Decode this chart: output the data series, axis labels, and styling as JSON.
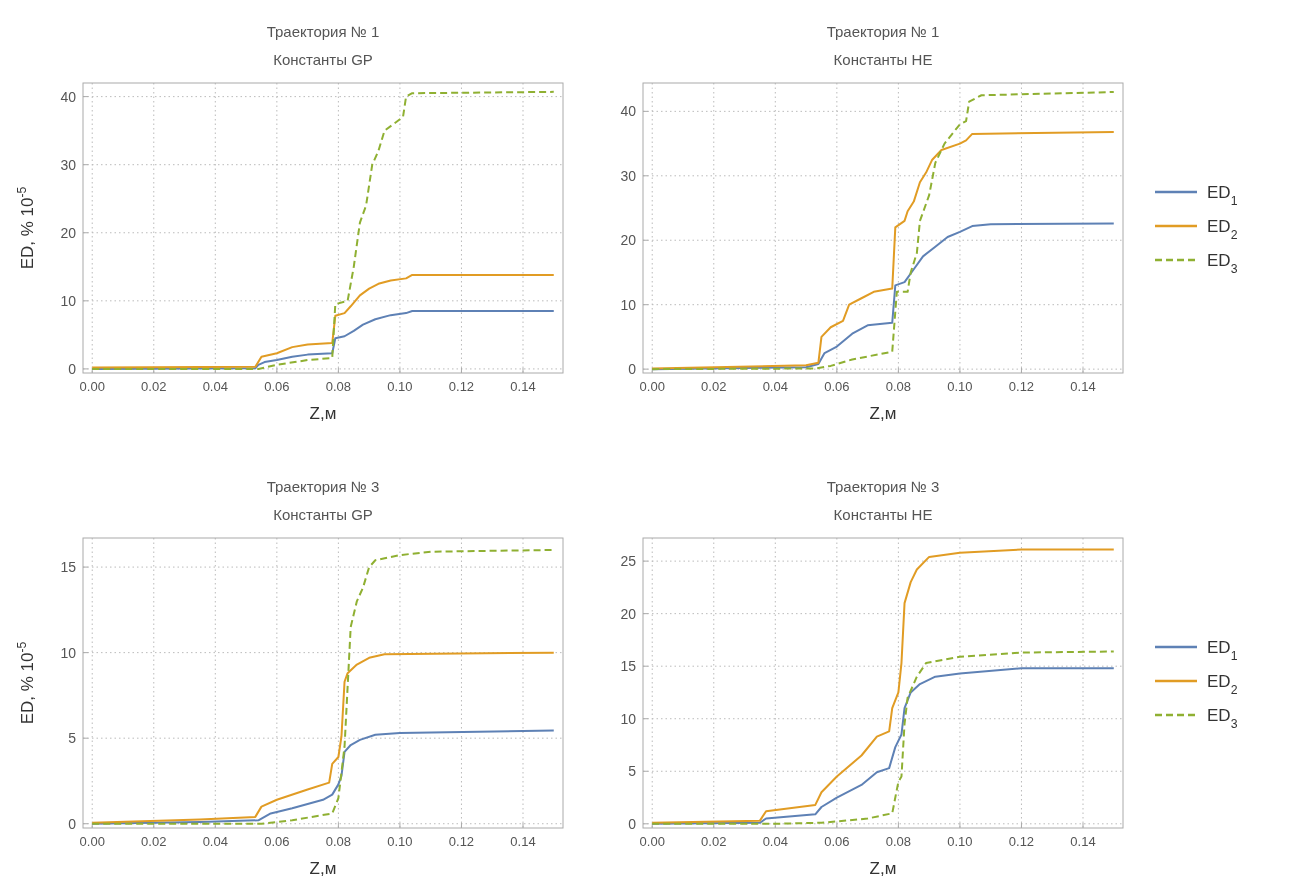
{
  "chart_data": [
    {
      "type": "line",
      "title": "Траектория № 1",
      "subtitle": "Константы GP",
      "xlabel": "Z,м",
      "ylabel": "ED, % 10$^{-5}$",
      "xlim": [
        -0.003,
        0.153
      ],
      "ylim": [
        -0.6,
        42
      ],
      "xticks": [
        {
          "value": 0,
          "label": "0.00"
        },
        {
          "value": 0.02,
          "label": "0.02"
        },
        {
          "value": 0.04,
          "label": "0.04"
        },
        {
          "value": 0.06,
          "label": "0.06"
        },
        {
          "value": 0.08,
          "label": "0.08"
        },
        {
          "value": 0.1,
          "label": "0.10"
        },
        {
          "value": 0.12,
          "label": "0.12"
        },
        {
          "value": 0.14,
          "label": "0.14"
        }
      ],
      "yticks": [
        0,
        10,
        20,
        30,
        40
      ],
      "grid": true,
      "legend": false,
      "series": [
        {
          "color": "#5e81b5",
          "line_style": "solid",
          "x": [
            0,
            0.053,
            0.054,
            0.056,
            0.06,
            0.065,
            0.07,
            0.078,
            0.079,
            0.082,
            0.085,
            0.088,
            0.092,
            0.097,
            0.102,
            0.104,
            0.15
          ],
          "values": [
            0,
            0.1,
            0.6,
            1.0,
            1.3,
            1.8,
            2.1,
            2.3,
            4.5,
            4.8,
            5.6,
            6.5,
            7.3,
            7.9,
            8.2,
            8.5,
            8.5
          ]
        },
        {
          "color": "#e19c24",
          "line_style": "solid",
          "x": [
            0,
            0.053,
            0.055,
            0.06,
            0.065,
            0.07,
            0.078,
            0.079,
            0.082,
            0.084,
            0.087,
            0.09,
            0.093,
            0.097,
            0.102,
            0.104,
            0.15
          ],
          "values": [
            0.2,
            0.3,
            1.8,
            2.3,
            3.2,
            3.6,
            3.8,
            7.8,
            8.2,
            9.2,
            10.8,
            11.8,
            12.5,
            13.0,
            13.3,
            13.8,
            13.8
          ]
        },
        {
          "color": "#8fb032",
          "line_style": "dashed",
          "x": [
            0,
            0.054,
            0.06,
            0.07,
            0.078,
            0.079,
            0.083,
            0.085,
            0.087,
            0.089,
            0.091,
            0.093,
            0.095,
            0.098,
            0.101,
            0.102,
            0.104,
            0.15
          ],
          "values": [
            0,
            0,
            0.6,
            1.3,
            1.6,
            9.5,
            10,
            15,
            21.5,
            24,
            30,
            32,
            35,
            36,
            37,
            40,
            40.5,
            40.7
          ]
        }
      ]
    },
    {
      "type": "line",
      "title": "Траектория № 1",
      "subtitle": "Константы HE",
      "xlabel": "Z,м",
      "xlim": [
        -0.003,
        0.153
      ],
      "ylim": [
        -0.6,
        44.4
      ],
      "xticks": [
        {
          "value": 0,
          "label": "0.00"
        },
        {
          "value": 0.02,
          "label": "0.02"
        },
        {
          "value": 0.04,
          "label": "0.04"
        },
        {
          "value": 0.06,
          "label": "0.06"
        },
        {
          "value": 0.08,
          "label": "0.08"
        },
        {
          "value": 0.1,
          "label": "0.10"
        },
        {
          "value": 0.12,
          "label": "0.12"
        },
        {
          "value": 0.14,
          "label": "0.14"
        }
      ],
      "yticks": [
        0,
        10,
        20,
        30,
        40
      ],
      "grid": true,
      "legend": "right",
      "series": [
        {
          "name": "ED$_{1}$",
          "color": "#5e81b5",
          "line_style": "solid",
          "x": [
            0,
            0.05,
            0.054,
            0.056,
            0.06,
            0.065,
            0.07,
            0.078,
            0.079,
            0.082,
            0.085,
            0.088,
            0.092,
            0.096,
            0.1,
            0.104,
            0.11,
            0.15
          ],
          "values": [
            0,
            0.3,
            0.8,
            2.5,
            3.5,
            5.5,
            6.8,
            7.2,
            13,
            13.5,
            15.5,
            17.5,
            19,
            20.5,
            21.3,
            22.2,
            22.5,
            22.6
          ]
        },
        {
          "name": "ED$_{2}$",
          "color": "#e19c24",
          "line_style": "solid",
          "x": [
            0,
            0.05,
            0.054,
            0.055,
            0.058,
            0.062,
            0.064,
            0.068,
            0.072,
            0.078,
            0.079,
            0.082,
            0.083,
            0.085,
            0.087,
            0.089,
            0.091,
            0.094,
            0.1,
            0.102,
            0.104,
            0.15
          ],
          "values": [
            0.1,
            0.6,
            1,
            5,
            6.5,
            7.5,
            10,
            11,
            12,
            12.5,
            22,
            23,
            24.5,
            26,
            29,
            30.5,
            32.5,
            34,
            35,
            35.5,
            36.5,
            36.8
          ]
        },
        {
          "name": "ED$_{3}$",
          "color": "#8fb032",
          "line_style": "dashed",
          "x": [
            0,
            0.053,
            0.058,
            0.065,
            0.078,
            0.0795,
            0.083,
            0.084,
            0.086,
            0.087,
            0.09,
            0.092,
            0.095,
            0.1,
            0.102,
            0.103,
            0.107,
            0.15
          ],
          "values": [
            0,
            0.1,
            0.5,
            1.5,
            2.7,
            12,
            12,
            15,
            18,
            23,
            27,
            32,
            35,
            38,
            38.5,
            41.5,
            42.5,
            43
          ]
        }
      ]
    },
    {
      "type": "line",
      "title": "Траектория № 3",
      "subtitle": "Константы GP",
      "xlabel": "Z,м",
      "ylabel": "ED, % 10$^{-5}$",
      "xlim": [
        -0.003,
        0.153
      ],
      "ylim": [
        -0.25,
        16.7
      ],
      "xticks": [
        {
          "value": 0,
          "label": "0.00"
        },
        {
          "value": 0.02,
          "label": "0.02"
        },
        {
          "value": 0.04,
          "label": "0.04"
        },
        {
          "value": 0.06,
          "label": "0.06"
        },
        {
          "value": 0.08,
          "label": "0.08"
        },
        {
          "value": 0.1,
          "label": "0.10"
        },
        {
          "value": 0.12,
          "label": "0.12"
        },
        {
          "value": 0.14,
          "label": "0.14"
        }
      ],
      "yticks": [
        0,
        5,
        10,
        15
      ],
      "grid": true,
      "legend": false,
      "series": [
        {
          "color": "#5e81b5",
          "line_style": "solid",
          "x": [
            0,
            0.035,
            0.054,
            0.058,
            0.065,
            0.075,
            0.078,
            0.08,
            0.081,
            0.082,
            0.084,
            0.087,
            0.092,
            0.1,
            0.15
          ],
          "values": [
            0,
            0.1,
            0.2,
            0.6,
            0.9,
            1.4,
            1.7,
            2.3,
            2.8,
            4.2,
            4.6,
            4.9,
            5.2,
            5.3,
            5.45
          ]
        },
        {
          "color": "#e19c24",
          "line_style": "solid",
          "x": [
            0,
            0.035,
            0.053,
            0.055,
            0.06,
            0.07,
            0.077,
            0.078,
            0.08,
            0.081,
            0.082,
            0.083,
            0.086,
            0.09,
            0.095,
            0.15
          ],
          "values": [
            0.05,
            0.25,
            0.4,
            1,
            1.4,
            2,
            2.4,
            3.5,
            3.9,
            5.1,
            8.3,
            8.8,
            9.3,
            9.7,
            9.9,
            10
          ]
        },
        {
          "color": "#8fb032",
          "line_style": "dashed",
          "x": [
            0,
            0.055,
            0.065,
            0.078,
            0.08,
            0.081,
            0.082,
            0.083,
            0.084,
            0.086,
            0.088,
            0.09,
            0.092,
            0.1,
            0.11,
            0.15
          ],
          "values": [
            0,
            0,
            0.2,
            0.6,
            1.5,
            3,
            4.5,
            8,
            11.5,
            13,
            13.8,
            15,
            15.4,
            15.7,
            15.9,
            16
          ]
        }
      ]
    },
    {
      "type": "line",
      "title": "Траектория № 3",
      "subtitle": "Константы HE",
      "xlabel": "Z,м",
      "xlim": [
        -0.003,
        0.153
      ],
      "ylim": [
        -0.4,
        27.2
      ],
      "xticks": [
        {
          "value": 0,
          "label": "0.00"
        },
        {
          "value": 0.02,
          "label": "0.02"
        },
        {
          "value": 0.04,
          "label": "0.04"
        },
        {
          "value": 0.06,
          "label": "0.06"
        },
        {
          "value": 0.08,
          "label": "0.08"
        },
        {
          "value": 0.1,
          "label": "0.10"
        },
        {
          "value": 0.12,
          "label": "0.12"
        },
        {
          "value": 0.14,
          "label": "0.14"
        }
      ],
      "yticks": [
        0,
        5,
        10,
        15,
        20,
        25
      ],
      "grid": true,
      "legend": "right",
      "series": [
        {
          "name": "ED$_{1}$",
          "color": "#5e81b5",
          "line_style": "solid",
          "x": [
            0,
            0.035,
            0.037,
            0.053,
            0.055,
            0.06,
            0.068,
            0.073,
            0.077,
            0.079,
            0.081,
            0.082,
            0.084,
            0.087,
            0.092,
            0.1,
            0.12,
            0.15
          ],
          "values": [
            0,
            0.1,
            0.5,
            0.9,
            1.6,
            2.5,
            3.7,
            4.9,
            5.3,
            7.3,
            8.5,
            11,
            12.5,
            13.3,
            14,
            14.3,
            14.8,
            14.8
          ]
        },
        {
          "name": "ED$_{2}$",
          "color": "#e19c24",
          "line_style": "solid",
          "x": [
            0,
            0.035,
            0.037,
            0.053,
            0.055,
            0.06,
            0.068,
            0.073,
            0.077,
            0.078,
            0.08,
            0.081,
            0.082,
            0.084,
            0.086,
            0.09,
            0.1,
            0.12,
            0.15
          ],
          "values": [
            0.1,
            0.3,
            1.2,
            1.8,
            3,
            4.5,
            6.5,
            8.3,
            8.8,
            11,
            12.5,
            15.3,
            21,
            23,
            24.2,
            25.4,
            25.8,
            26.1,
            26.1
          ]
        },
        {
          "name": "ED$_{3}$",
          "color": "#8fb032",
          "line_style": "dashed",
          "x": [
            0,
            0.04,
            0.055,
            0.07,
            0.078,
            0.08,
            0.081,
            0.082,
            0.083,
            0.086,
            0.089,
            0.1,
            0.12,
            0.15
          ],
          "values": [
            0,
            0,
            0.1,
            0.5,
            1,
            4,
            4.5,
            9.5,
            12,
            14,
            15.3,
            15.9,
            16.3,
            16.4
          ]
        }
      ]
    }
  ]
}
